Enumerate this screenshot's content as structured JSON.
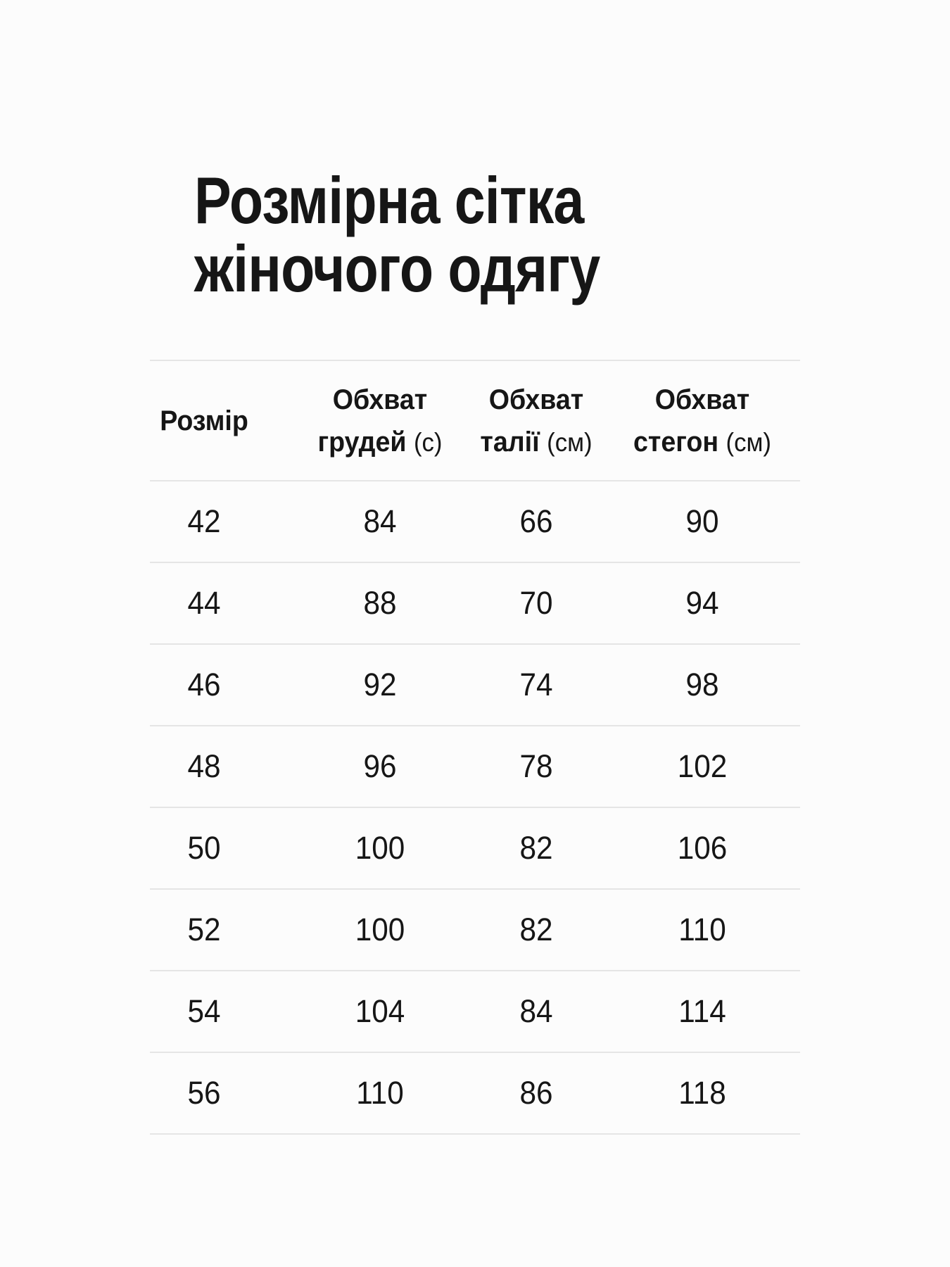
{
  "title": {
    "line1": "Розмірна сітка",
    "line2": "жіночого одягу"
  },
  "table": {
    "columns": [
      {
        "label": "Розмір",
        "sub": "",
        "unit": ""
      },
      {
        "label": "Обхват",
        "sub": "грудей",
        "unit": "(с)"
      },
      {
        "label": "Обхват",
        "sub": "талії",
        "unit": "(см)"
      },
      {
        "label": "Обхват",
        "sub": "стегон",
        "unit": "(см)"
      }
    ],
    "rows": [
      [
        "42",
        "84",
        "66",
        "90"
      ],
      [
        "44",
        "88",
        "70",
        "94"
      ],
      [
        "46",
        "92",
        "74",
        "98"
      ],
      [
        "48",
        "96",
        "78",
        "102"
      ],
      [
        "50",
        "100",
        "82",
        "106"
      ],
      [
        "52",
        "100",
        "82",
        "110"
      ],
      [
        "54",
        "104",
        "84",
        "114"
      ],
      [
        "56",
        "110",
        "86",
        "118"
      ]
    ]
  },
  "colors": {
    "background": "#fcfcfc",
    "text": "#161616",
    "divider": "#e5e5e5"
  }
}
